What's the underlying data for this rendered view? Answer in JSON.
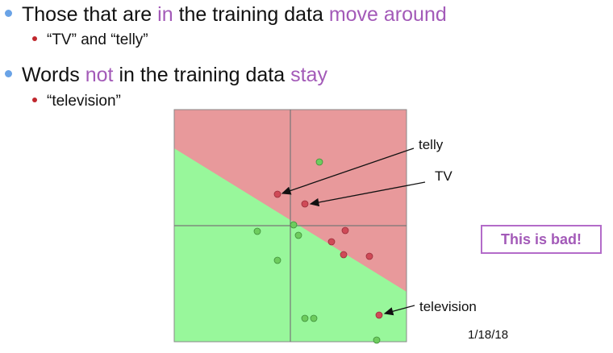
{
  "bullets": [
    {
      "parts": [
        "Those that are ",
        "in",
        " the training data ",
        "move around"
      ],
      "sub": "“TV” and “telly”"
    },
    {
      "parts": [
        "Words ",
        "not",
        " in the training data ",
        "stay"
      ],
      "sub": "“television”"
    }
  ],
  "plot": {
    "labels": {
      "telly": "telly",
      "tv": "TV",
      "television": "television"
    },
    "colors": {
      "red_region": "#e8999b",
      "green_region": "#98f79b",
      "red_point": "#cf4a57",
      "green_point": "#6ecc5e"
    }
  },
  "callout": "This is bad!",
  "footer": {
    "date": "1/18/18"
  }
}
